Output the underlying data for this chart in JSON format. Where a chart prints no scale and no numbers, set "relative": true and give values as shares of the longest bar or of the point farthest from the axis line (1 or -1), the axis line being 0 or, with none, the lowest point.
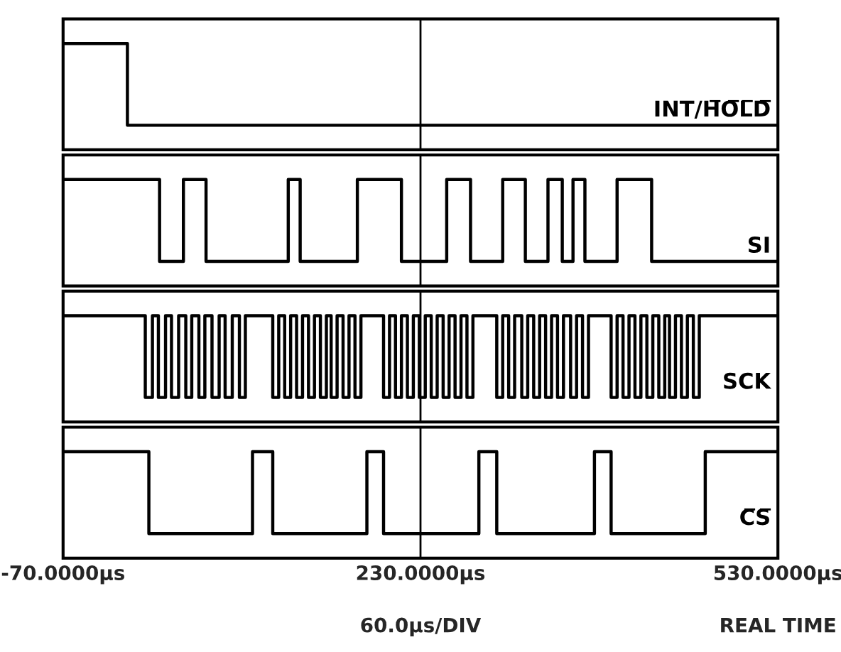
{
  "chart_data": [
    {
      "type": "step",
      "relative": true,
      "xlim": [
        -70,
        530
      ],
      "xticks": [
        {
          "value": -70,
          "label": null
        },
        {
          "value": 230,
          "label": null
        },
        {
          "value": 530,
          "label": null
        }
      ],
      "tick_labels": false,
      "grid": "x",
      "series": [
        {
          "name": "INT/H̅O̅L̅D̅",
          "color": "#000000",
          "x": [
            -70,
            -40,
            -16,
            100,
            230,
            400,
            530
          ],
          "values": [
            1,
            1,
            0,
            0,
            0,
            0,
            0
          ]
        }
      ]
    },
    {
      "type": "step",
      "relative": true,
      "xlim": [
        -70,
        530
      ],
      "xticks": [
        {
          "value": -70,
          "label": null
        },
        {
          "value": 230,
          "label": null
        },
        {
          "value": 530,
          "label": null
        }
      ],
      "tick_labels": false,
      "grid": "x",
      "series": [
        {
          "name": "SI",
          "color": "#000000",
          "x": [
            -70,
            11,
            31,
            50,
            119,
            129,
            177,
            214,
            252,
            272,
            299,
            318,
            337,
            349,
            358,
            368,
            395,
            424,
            530
          ],
          "values": [
            1,
            0,
            1,
            0,
            1,
            0,
            1,
            0,
            1,
            0,
            1,
            0,
            1,
            0,
            1,
            0,
            1,
            0,
            0
          ]
        }
      ]
    },
    {
      "type": "step",
      "relative": true,
      "xlim": [
        -70,
        530
      ],
      "xticks": [
        {
          "value": -70,
          "label": null
        },
        {
          "value": 230,
          "label": null
        },
        {
          "value": 530,
          "label": null
        }
      ],
      "tick_labels": false,
      "grid": "x",
      "series": [
        {
          "name": "SCK",
          "color": "#000000",
          "x": [
            -70,
            -1,
            5,
            10,
            16,
            21,
            27,
            33,
            38,
            44,
            49,
            55,
            61,
            66,
            72,
            78,
            83,
            106,
            111,
            116,
            121,
            126,
            131,
            136,
            141,
            146,
            151,
            155,
            160,
            165,
            170,
            175,
            180,
            199,
            204,
            209,
            214,
            219,
            224,
            229,
            234,
            239,
            244,
            249,
            254,
            259,
            264,
            269,
            274,
            294,
            299,
            304,
            309,
            315,
            320,
            325,
            330,
            335,
            340,
            345,
            350,
            356,
            361,
            366,
            371,
            390,
            395,
            400,
            405,
            410,
            415,
            420,
            425,
            430,
            435,
            439,
            444,
            449,
            454,
            459,
            464,
            530
          ],
          "values": [
            1,
            0,
            1,
            0,
            1,
            0,
            1,
            0,
            1,
            0,
            1,
            0,
            1,
            0,
            1,
            0,
            1,
            0,
            1,
            0,
            1,
            0,
            1,
            0,
            1,
            0,
            1,
            0,
            1,
            0,
            1,
            0,
            1,
            0,
            1,
            0,
            1,
            0,
            1,
            0,
            1,
            0,
            1,
            0,
            1,
            0,
            1,
            0,
            1,
            0,
            1,
            0,
            1,
            0,
            1,
            0,
            1,
            0,
            1,
            0,
            1,
            0,
            1,
            0,
            1,
            0,
            1,
            0,
            1,
            0,
            1,
            0,
            1,
            0,
            1,
            0,
            1,
            0,
            1,
            0,
            1,
            1
          ]
        }
      ]
    },
    {
      "type": "step",
      "relative": true,
      "xlim": [
        -70,
        530
      ],
      "xticks": [
        {
          "value": -70,
          "label": "-70.0000µs"
        },
        {
          "value": 230,
          "label": "230.0000µs"
        },
        {
          "value": 530,
          "label": "530.0000µs"
        }
      ],
      "tick_labels": "x",
      "grid": "x",
      "annotations": [
        "60.0µs/DIV",
        "REAL TIME"
      ],
      "series": [
        {
          "name": "C̅S̅",
          "color": "#000000",
          "x": [
            -70,
            2,
            89,
            106,
            185,
            199,
            279,
            294,
            376,
            390,
            469,
            530
          ],
          "values": [
            1,
            0,
            1,
            0,
            1,
            0,
            1,
            0,
            1,
            0,
            1,
            1
          ]
        }
      ]
    }
  ]
}
